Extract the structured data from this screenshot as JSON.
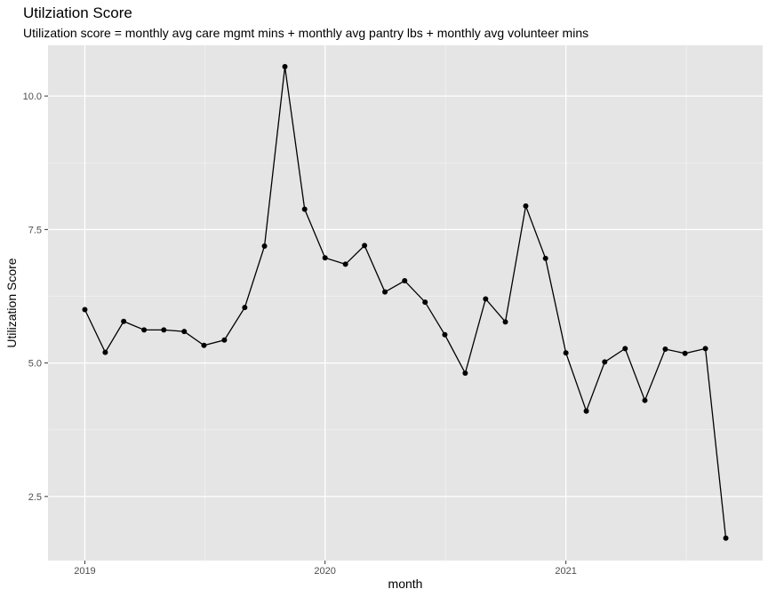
{
  "chart_data": {
    "type": "line",
    "title": "Utilziation Score",
    "subtitle": "Utilization score = monthly avg care mgmt mins + monthly avg pantry lbs + monthly avg volunteer mins",
    "xlabel": "month",
    "ylabel": "Utilization Score",
    "x_ticks": [
      {
        "value": "2019-01-01",
        "label": "2019"
      },
      {
        "value": "2020-01-01",
        "label": "2020"
      },
      {
        "value": "2021-01-01",
        "label": "2021"
      }
    ],
    "y_ticks": [
      {
        "value": 2.5,
        "label": "2.5"
      },
      {
        "value": 5.0,
        "label": "5.0"
      },
      {
        "value": 7.5,
        "label": "7.5"
      },
      {
        "value": 10.0,
        "label": "10.0"
      }
    ],
    "ylim": [
      1.3,
      10.95
    ],
    "xlim": [
      "2018-11-06",
      "2021-10-27"
    ],
    "grid": true,
    "colors": {
      "panel": "#e5e5e5",
      "grid_major": "#ffffff",
      "grid_minor": "#f2f2f2",
      "line": "#000000",
      "point": "#000000"
    },
    "points": [
      {
        "x": "2019-01-01",
        "y": 6.0
      },
      {
        "x": "2019-02-01",
        "y": 5.2
      },
      {
        "x": "2019-03-01",
        "y": 5.78
      },
      {
        "x": "2019-04-01",
        "y": 5.62
      },
      {
        "x": "2019-05-01",
        "y": 5.62
      },
      {
        "x": "2019-06-01",
        "y": 5.59
      },
      {
        "x": "2019-07-01",
        "y": 5.33
      },
      {
        "x": "2019-08-01",
        "y": 5.43
      },
      {
        "x": "2019-09-01",
        "y": 6.04
      },
      {
        "x": "2019-10-01",
        "y": 7.19
      },
      {
        "x": "2019-11-01",
        "y": 10.55
      },
      {
        "x": "2019-12-01",
        "y": 7.88
      },
      {
        "x": "2020-01-01",
        "y": 6.97
      },
      {
        "x": "2020-02-01",
        "y": 6.85
      },
      {
        "x": "2020-03-01",
        "y": 7.2
      },
      {
        "x": "2020-04-01",
        "y": 6.33
      },
      {
        "x": "2020-05-01",
        "y": 6.54
      },
      {
        "x": "2020-06-01",
        "y": 6.14
      },
      {
        "x": "2020-07-01",
        "y": 5.53
      },
      {
        "x": "2020-08-01",
        "y": 4.81
      },
      {
        "x": "2020-09-01",
        "y": 6.2
      },
      {
        "x": "2020-10-01",
        "y": 5.77
      },
      {
        "x": "2020-11-01",
        "y": 7.94
      },
      {
        "x": "2020-12-01",
        "y": 6.96
      },
      {
        "x": "2021-01-01",
        "y": 5.19
      },
      {
        "x": "2021-02-01",
        "y": 4.1
      },
      {
        "x": "2021-03-01",
        "y": 5.02
      },
      {
        "x": "2021-04-01",
        "y": 5.27
      },
      {
        "x": "2021-05-01",
        "y": 4.3
      },
      {
        "x": "2021-06-01",
        "y": 5.26
      },
      {
        "x": "2021-07-01",
        "y": 5.18
      },
      {
        "x": "2021-08-01",
        "y": 5.27
      },
      {
        "x": "2021-09-01",
        "y": 1.72
      }
    ]
  }
}
